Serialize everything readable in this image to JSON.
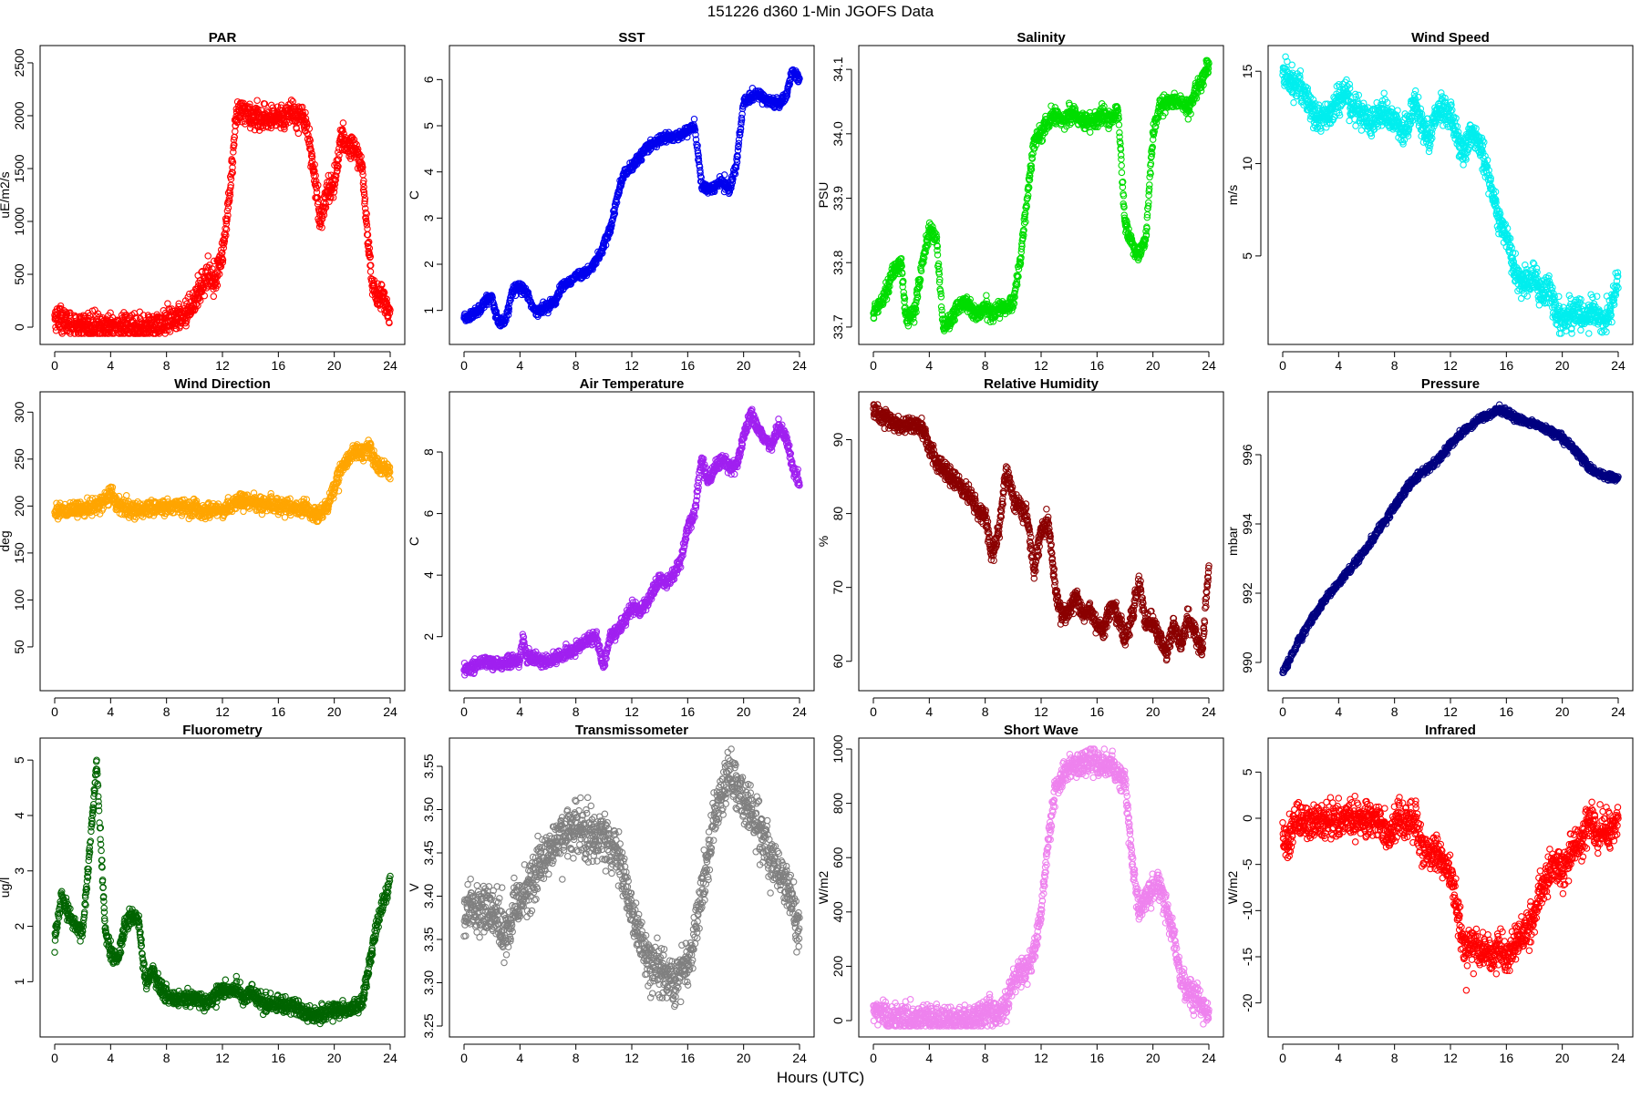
{
  "figure": {
    "suptitle": "151226   d360   1-Min  JGOFS Data",
    "xlabel": "Hours (UTC)",
    "x_ticks": [
      0,
      4,
      8,
      12,
      16,
      20,
      24
    ]
  },
  "chart_data": [
    {
      "id": "par",
      "type": "scatter",
      "title": "PAR",
      "ylabel": "uE/m2/s",
      "color": "#ff0000",
      "xlim": [
        0,
        24
      ],
      "ylim": [
        -60,
        2560
      ],
      "yticks": [
        0,
        500,
        1000,
        1500,
        2000,
        2500
      ],
      "ytick_labels": [
        "0",
        "500",
        "1000",
        "1500",
        "2000",
        "2500"
      ],
      "noise": 60,
      "x": [
        0,
        0.5,
        1,
        2,
        3,
        4,
        5,
        6,
        7,
        7.5,
        8,
        8.5,
        9,
        9.5,
        10,
        10.5,
        11,
        11.5,
        12,
        12.3,
        12.7,
        13,
        13.5,
        14,
        14.5,
        15,
        15.5,
        16,
        16.5,
        17,
        17.5,
        18,
        18.5,
        19,
        19.5,
        20,
        20.5,
        21,
        21.5,
        22,
        22.3,
        22.7,
        23,
        23.5,
        24
      ],
      "y": [
        100,
        80,
        30,
        10,
        5,
        5,
        5,
        5,
        5,
        20,
        40,
        70,
        100,
        150,
        250,
        400,
        500,
        450,
        700,
        1000,
        1500,
        2000,
        2050,
        2000,
        2000,
        1950,
        1950,
        2000,
        2000,
        2050,
        2000,
        1950,
        1500,
        1000,
        1300,
        1350,
        1800,
        1700,
        1700,
        1500,
        1000,
        400,
        300,
        300,
        80
      ]
    },
    {
      "id": "sst",
      "type": "scatter",
      "title": "SST",
      "ylabel": "C",
      "color": "#0000ee",
      "xlim": [
        0,
        24
      ],
      "ylim": [
        0.5,
        6.5
      ],
      "yticks": [
        1,
        2,
        3,
        4,
        5,
        6
      ],
      "ytick_labels": [
        "1",
        "2",
        "3",
        "4",
        "5",
        "6"
      ],
      "noise": 0.05,
      "x": [
        0,
        0.5,
        1,
        1.5,
        2,
        2.3,
        2.5,
        3,
        3.3,
        3.5,
        4,
        4.5,
        5,
        5.5,
        6,
        6.5,
        7,
        7.5,
        8,
        8.5,
        9,
        9.5,
        10,
        10.5,
        11,
        11.5,
        12,
        12.5,
        13,
        13.5,
        14,
        14.5,
        15,
        15.5,
        16,
        16.5,
        17,
        17.5,
        18,
        18.5,
        19,
        19.5,
        20,
        20.5,
        21,
        21.5,
        22,
        22.5,
        23,
        23.5,
        24
      ],
      "y": [
        0.8,
        0.9,
        1.0,
        1.2,
        1.3,
        0.9,
        0.7,
        0.8,
        1.2,
        1.5,
        1.5,
        1.4,
        1.0,
        1.0,
        1.1,
        1.2,
        1.5,
        1.6,
        1.75,
        1.75,
        1.9,
        2.1,
        2.4,
        2.8,
        3.5,
        4.0,
        4.1,
        4.3,
        4.5,
        4.6,
        4.7,
        4.75,
        4.75,
        4.8,
        4.9,
        5.0,
        3.7,
        3.6,
        3.7,
        3.8,
        3.6,
        4.2,
        5.5,
        5.6,
        5.7,
        5.6,
        5.5,
        5.5,
        5.6,
        6.2,
        6.0
      ]
    },
    {
      "id": "salinity",
      "type": "scatter",
      "title": "Salinity",
      "ylabel": "PSU",
      "color": "#00dd00",
      "xlim": [
        0,
        24
      ],
      "ylim": [
        33.69,
        34.12
      ],
      "yticks": [
        33.7,
        33.8,
        33.9,
        34.0,
        34.1
      ],
      "ytick_labels": [
        "33.7",
        "33.8",
        "33.9",
        "34.0",
        "34.1"
      ],
      "noise": 0.006,
      "x": [
        0,
        0.5,
        1,
        1.5,
        2,
        2.3,
        2.5,
        3,
        3.5,
        4,
        4.5,
        5,
        5.5,
        6,
        6.5,
        7,
        7.5,
        8,
        8.5,
        9,
        9.5,
        10,
        10.5,
        11,
        11.5,
        12,
        12.5,
        13,
        13.5,
        14,
        14.5,
        15,
        15.5,
        16,
        16.5,
        17,
        17.5,
        18,
        18.5,
        19,
        19.5,
        20,
        20.5,
        21,
        21.5,
        22,
        22.5,
        23,
        23.5,
        24
      ],
      "y": [
        33.72,
        33.74,
        33.76,
        33.79,
        33.8,
        33.72,
        33.71,
        33.73,
        33.8,
        33.85,
        33.84,
        33.7,
        33.71,
        33.73,
        33.74,
        33.73,
        33.72,
        33.73,
        33.72,
        33.73,
        33.73,
        33.74,
        33.8,
        33.9,
        33.99,
        34.0,
        34.02,
        34.03,
        34.02,
        34.03,
        34.03,
        34.02,
        34.02,
        34.02,
        34.03,
        34.02,
        34.04,
        33.86,
        33.83,
        33.81,
        33.84,
        34.0,
        34.04,
        34.05,
        34.05,
        34.05,
        34.04,
        34.06,
        34.08,
        34.11
      ]
    },
    {
      "id": "wind_speed",
      "type": "scatter",
      "title": "Wind Speed",
      "ylabel": "m/s",
      "color": "#00eeee",
      "xlim": [
        0,
        24
      ],
      "ylim": [
        0.8,
        15.8
      ],
      "yticks": [
        5,
        10,
        15
      ],
      "ytick_labels": [
        "5",
        "10",
        "15"
      ],
      "noise": 0.4,
      "x": [
        0,
        0.5,
        1,
        1.5,
        2,
        2.5,
        3,
        3.5,
        4,
        4.5,
        5,
        5.5,
        6,
        6.5,
        7,
        7.5,
        8,
        8.5,
        9,
        9.5,
        10,
        10.5,
        11,
        11.5,
        12,
        12.5,
        13,
        13.5,
        14,
        14.5,
        15,
        15.5,
        16,
        16.5,
        17,
        17.5,
        18,
        18.5,
        19,
        19.5,
        20,
        20.5,
        21,
        21.5,
        22,
        22.5,
        23,
        23.5,
        24
      ],
      "y": [
        15,
        14.5,
        14.2,
        14.0,
        13.0,
        12.5,
        12.5,
        12.7,
        13.5,
        14,
        13,
        12.8,
        12.6,
        12.2,
        12.8,
        12.7,
        12.3,
        11.8,
        12,
        13.5,
        12,
        11.5,
        12.8,
        12.8,
        12.5,
        11.5,
        10.5,
        11.5,
        11.2,
        10.0,
        8.5,
        7.0,
        6.0,
        4.5,
        3.5,
        3.5,
        3.8,
        3.0,
        3.5,
        2.0,
        1.5,
        1.8,
        2.0,
        1.5,
        2.0,
        1.8,
        1.5,
        2.0,
        4.0
      ]
    },
    {
      "id": "wind_direction",
      "type": "scatter",
      "title": "Wind Direction",
      "ylabel": "deg",
      "color": "#ffa500",
      "xlim": [
        0,
        24
      ],
      "ylim": [
        15,
        310
      ],
      "yticks": [
        50,
        100,
        150,
        200,
        250,
        300
      ],
      "ytick_labels": [
        "50",
        "100",
        "150",
        "200",
        "250",
        "300"
      ],
      "noise": 4,
      "x": [
        0,
        1,
        2,
        3,
        3.5,
        4,
        4.5,
        5,
        6,
        7,
        8,
        9,
        10,
        10.5,
        11,
        12,
        12.5,
        13,
        14,
        15,
        16,
        17,
        17.5,
        18,
        18.5,
        19,
        19.5,
        20,
        20.5,
        21,
        21.5,
        22,
        22.5,
        23,
        23.5,
        24
      ],
      "y": [
        195,
        195,
        197,
        200,
        205,
        215,
        200,
        198,
        196,
        198,
        200,
        200,
        198,
        192,
        195,
        196,
        200,
        205,
        205,
        202,
        200,
        198,
        196,
        200,
        190,
        192,
        200,
        220,
        240,
        250,
        260,
        255,
        265,
        245,
        240,
        235
      ]
    },
    {
      "id": "air_temperature",
      "type": "scatter",
      "title": "Air Temperature",
      "ylabel": "C",
      "color": "#a020f0",
      "xlim": [
        0,
        24
      ],
      "ylim": [
        0.6,
        9.6
      ],
      "yticks": [
        2,
        4,
        6,
        8
      ],
      "ytick_labels": [
        "2",
        "4",
        "6",
        "8"
      ],
      "noise": 0.1,
      "x": [
        0,
        0.5,
        1,
        1.5,
        2,
        2.5,
        3,
        3.5,
        4,
        4.2,
        4.5,
        5,
        5.5,
        6,
        6.5,
        7,
        7.5,
        8,
        8.5,
        9,
        9.5,
        10,
        10.2,
        10.5,
        11,
        11.5,
        12,
        12.5,
        13,
        13.5,
        14,
        14.5,
        15,
        15.5,
        16,
        16.5,
        17,
        17.5,
        18,
        18.5,
        19,
        19.5,
        20,
        20.5,
        21,
        21.5,
        22,
        22.5,
        23,
        23.5,
        24
      ],
      "y": [
        0.9,
        1.0,
        1.1,
        1.2,
        1.15,
        1.1,
        1.2,
        1.2,
        1.2,
        2.0,
        1.3,
        1.3,
        1.2,
        1.2,
        1.3,
        1.4,
        1.5,
        1.6,
        1.8,
        1.9,
        2.0,
        1.0,
        1.5,
        2.0,
        2.2,
        2.5,
        3.0,
        2.8,
        3.0,
        3.5,
        3.9,
        3.7,
        4.0,
        4.5,
        5.5,
        6.0,
        7.8,
        7.0,
        7.5,
        7.8,
        7.5,
        7.6,
        8.5,
        9.2,
        8.8,
        8.4,
        8.2,
        8.8,
        8.5,
        7.5,
        7.0
      ]
    },
    {
      "id": "relative_humidity",
      "type": "scatter",
      "title": "Relative Humidity",
      "ylabel": "%",
      "color": "#8b0000",
      "xlim": [
        0,
        24
      ],
      "ylim": [
        57.5,
        95
      ],
      "yticks": [
        60,
        70,
        80,
        90
      ],
      "ytick_labels": [
        "60",
        "70",
        "80",
        "90"
      ],
      "noise": 0.6,
      "x": [
        0,
        0.5,
        1,
        1.5,
        2,
        2.5,
        3,
        3.5,
        4,
        4.5,
        5,
        5.5,
        6,
        6.5,
        7,
        7.5,
        8,
        8.5,
        9,
        9.5,
        10,
        10.5,
        11,
        11.5,
        12,
        12.5,
        13,
        13.5,
        14,
        14.5,
        15,
        15.5,
        16,
        16.5,
        17,
        17.5,
        18,
        18.5,
        19,
        19.5,
        20,
        20.5,
        21,
        21.5,
        22,
        22.5,
        23,
        23.5,
        24
      ],
      "y": [
        94,
        93.5,
        93,
        92.2,
        92,
        92,
        92,
        91.5,
        89,
        87,
        86,
        85,
        84.5,
        83,
        82,
        80,
        80,
        74,
        78,
        86,
        82,
        81,
        79.5,
        72,
        78,
        79,
        70,
        66,
        67,
        69,
        66,
        67,
        65,
        64,
        68,
        66,
        63,
        66,
        71,
        65,
        65,
        63,
        61,
        65,
        62,
        66,
        64,
        61,
        73
      ]
    },
    {
      "id": "pressure",
      "type": "scatter",
      "title": "Pressure",
      "ylabel": "mbar",
      "color": "#000080",
      "xlim": [
        0,
        24
      ],
      "ylim": [
        989.5,
        997.5
      ],
      "yticks": [
        990,
        992,
        994,
        996
      ],
      "ytick_labels": [
        "990",
        "992",
        "994",
        "996"
      ],
      "noise": 0.05,
      "x": [
        0,
        1,
        2,
        3,
        4,
        5,
        6,
        7,
        8,
        9,
        10,
        11,
        12,
        13,
        14,
        15,
        15.5,
        16,
        17,
        18,
        19,
        20,
        21,
        22,
        23,
        24
      ],
      "y": [
        989.7,
        990.5,
        991.2,
        991.8,
        992.3,
        992.8,
        993.3,
        993.9,
        994.5,
        995.1,
        995.5,
        995.8,
        996.3,
        996.7,
        997.0,
        997.2,
        997.3,
        997.2,
        997.0,
        996.9,
        996.7,
        996.5,
        996.1,
        995.6,
        995.4,
        995.3
      ]
    },
    {
      "id": "fluorometry",
      "type": "scatter",
      "title": "Fluorometry",
      "ylabel": "ug/l",
      "color": "#006400",
      "xlim": [
        0,
        24
      ],
      "ylim": [
        0.2,
        5.2
      ],
      "yticks": [
        1,
        2,
        3,
        4,
        5
      ],
      "ytick_labels": [
        "1",
        "2",
        "3",
        "4",
        "5"
      ],
      "noise": 0.07,
      "x": [
        0,
        0.5,
        1,
        1.5,
        2,
        2.5,
        3,
        3.3,
        3.6,
        4,
        4.5,
        5,
        5.5,
        6,
        6.5,
        7,
        7.5,
        8,
        8.5,
        9,
        10,
        11,
        12,
        12.5,
        13,
        13.5,
        14,
        15,
        16,
        16.5,
        17,
        18,
        19,
        20,
        21,
        22,
        22.5,
        23,
        23.5,
        24
      ],
      "y": [
        1.7,
        2.6,
        2.2,
        2.0,
        1.9,
        3.4,
        4.9,
        3.5,
        2.0,
        1.5,
        1.4,
        2.0,
        2.2,
        2.1,
        1.0,
        1.2,
        0.9,
        0.8,
        0.7,
        0.7,
        0.7,
        0.6,
        0.9,
        0.8,
        0.9,
        0.7,
        0.8,
        0.6,
        0.6,
        0.55,
        0.6,
        0.4,
        0.4,
        0.5,
        0.5,
        0.6,
        1.3,
        2.0,
        2.4,
        2.8
      ]
    },
    {
      "id": "transmissometer",
      "type": "scatter",
      "title": "Transmissometer",
      "ylabel": "V",
      "color": "#808080",
      "xlim": [
        0,
        24
      ],
      "ylim": [
        3.25,
        3.57
      ],
      "yticks": [
        3.25,
        3.3,
        3.35,
        3.4,
        3.45,
        3.5,
        3.55
      ],
      "ytick_labels": [
        "3.25",
        "3.30",
        "3.35",
        "3.40",
        "3.45",
        "3.50",
        "3.55"
      ],
      "noise": 0.014,
      "x": [
        0,
        1,
        2,
        3,
        4,
        5,
        6,
        7,
        8,
        9,
        10,
        11,
        12,
        13,
        14,
        15,
        16,
        17,
        18,
        19,
        20,
        21,
        22,
        23,
        24
      ],
      "y": [
        3.38,
        3.39,
        3.38,
        3.36,
        3.4,
        3.42,
        3.45,
        3.47,
        3.48,
        3.47,
        3.47,
        3.45,
        3.38,
        3.33,
        3.32,
        3.3,
        3.32,
        3.4,
        3.5,
        3.54,
        3.51,
        3.48,
        3.44,
        3.42,
        3.36
      ]
    },
    {
      "id": "short_wave",
      "type": "scatter",
      "title": "Short Wave",
      "ylabel": "W/m2",
      "color": "#ee82ee",
      "xlim": [
        0,
        24
      ],
      "ylim": [
        -20,
        1000
      ],
      "yticks": [
        0,
        200,
        400,
        600,
        800,
        1000
      ],
      "ytick_labels": [
        "0",
        "200",
        "400",
        "600",
        "800",
        "1000"
      ],
      "noise": 25,
      "x": [
        0,
        0.5,
        1,
        2,
        3,
        4,
        5,
        6,
        7,
        8,
        8.5,
        9,
        9.5,
        10,
        10.5,
        11,
        11.5,
        12,
        12.5,
        13,
        13.5,
        14,
        14.5,
        15,
        15.5,
        16,
        16.5,
        17,
        17.5,
        18,
        18.5,
        19,
        19.5,
        20,
        20.5,
        21,
        21.5,
        22,
        22.5,
        23,
        23.5,
        24
      ],
      "y": [
        35,
        30,
        10,
        5,
        5,
        5,
        5,
        5,
        5,
        20,
        35,
        30,
        50,
        150,
        180,
        200,
        250,
        400,
        650,
        850,
        900,
        930,
        940,
        950,
        950,
        950,
        950,
        940,
        900,
        880,
        600,
        400,
        450,
        500,
        500,
        400,
        300,
        150,
        110,
        100,
        50,
        30
      ]
    },
    {
      "id": "infrared",
      "type": "scatter",
      "title": "Infrared",
      "ylabel": "W/m2",
      "color": "#ff0000",
      "xlim": [
        0,
        24
      ],
      "ylim": [
        -22.5,
        7.5
      ],
      "yticks": [
        -20,
        -15,
        -10,
        -5,
        0,
        5
      ],
      "ytick_labels": [
        "-20",
        "-15",
        "-10",
        "-5",
        "0",
        "5"
      ],
      "noise": 1.0,
      "x": [
        0,
        0.5,
        1,
        1.5,
        2,
        3,
        4,
        5,
        6,
        7,
        7.5,
        8,
        9,
        9.5,
        10,
        10.5,
        11,
        11.5,
        12,
        12.5,
        13,
        13.5,
        14,
        14.5,
        15,
        15.5,
        16,
        16.5,
        17,
        17.5,
        18,
        18.5,
        19,
        19.5,
        20,
        20.5,
        21,
        21.5,
        22,
        22.5,
        23,
        23.5,
        24
      ],
      "y": [
        -2.5,
        -2.5,
        -0.3,
        -0.3,
        -0.3,
        -0.2,
        -0.2,
        -0.3,
        -0.2,
        -0.3,
        -2.0,
        -0.3,
        -0.3,
        -0.3,
        -3,
        -4,
        -4,
        -5,
        -6,
        -10,
        -14,
        -13,
        -15,
        -14,
        -15,
        -14,
        -15,
        -14,
        -13,
        -12,
        -10,
        -8,
        -6,
        -5,
        -6,
        -4,
        -3,
        -2,
        0,
        -2,
        -1,
        -1.5,
        0
      ]
    }
  ]
}
